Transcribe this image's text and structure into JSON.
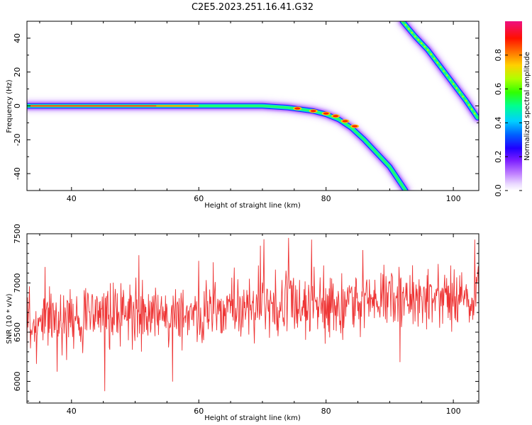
{
  "figure_title": "C2E5.2023.251.16.41.G32",
  "chart_data": [
    {
      "type": "heatmap",
      "xlabel": "Height of straight line (km)",
      "ylabel": "Frequency (Hz)",
      "xlim": [
        33,
        104
      ],
      "ylim": [
        -50,
        50
      ],
      "xticks": [
        40,
        60,
        80,
        100
      ],
      "yticks": [
        -40,
        -20,
        0,
        20,
        40
      ],
      "colorbar": {
        "label": "Normalized spectral amplitude",
        "range": [
          0,
          1
        ],
        "ticks": [
          0.0,
          0.2,
          0.4,
          0.6,
          0.8
        ],
        "tick_labels": [
          "0.0",
          "0.2",
          "0.4",
          "0.6",
          "0.8"
        ]
      },
      "ridges": [
        {
          "x": [
            33,
            40,
            50,
            60,
            66,
            70,
            74,
            76,
            78,
            80,
            82,
            84,
            86,
            88,
            90,
            92.5
          ],
          "y": [
            0,
            0,
            0,
            0,
            0,
            0,
            -1,
            -2,
            -3,
            -5,
            -8,
            -13,
            -20,
            -28,
            -36,
            -50
          ]
        },
        {
          "x": [
            92,
            94,
            96,
            98,
            100,
            102,
            103.8
          ],
          "y": [
            50,
            41,
            33,
            23,
            13,
            3,
            -7
          ]
        }
      ]
    },
    {
      "type": "line",
      "xlabel": "Height of straight line (km)",
      "ylabel": "SNR (10 * v/v)",
      "xlim": [
        33,
        104
      ],
      "ylim": [
        5780,
        7500
      ],
      "xticks": [
        40,
        60,
        80,
        100
      ],
      "yticks": [
        6000,
        6500,
        7000,
        7500
      ],
      "color": "#ee3333",
      "trend": {
        "x": [
          33,
          40,
          50,
          60,
          70,
          80,
          90,
          100,
          104
        ],
        "y": [
          6580,
          6650,
          6680,
          6710,
          6760,
          6800,
          6830,
          6830,
          6820
        ]
      }
    }
  ]
}
